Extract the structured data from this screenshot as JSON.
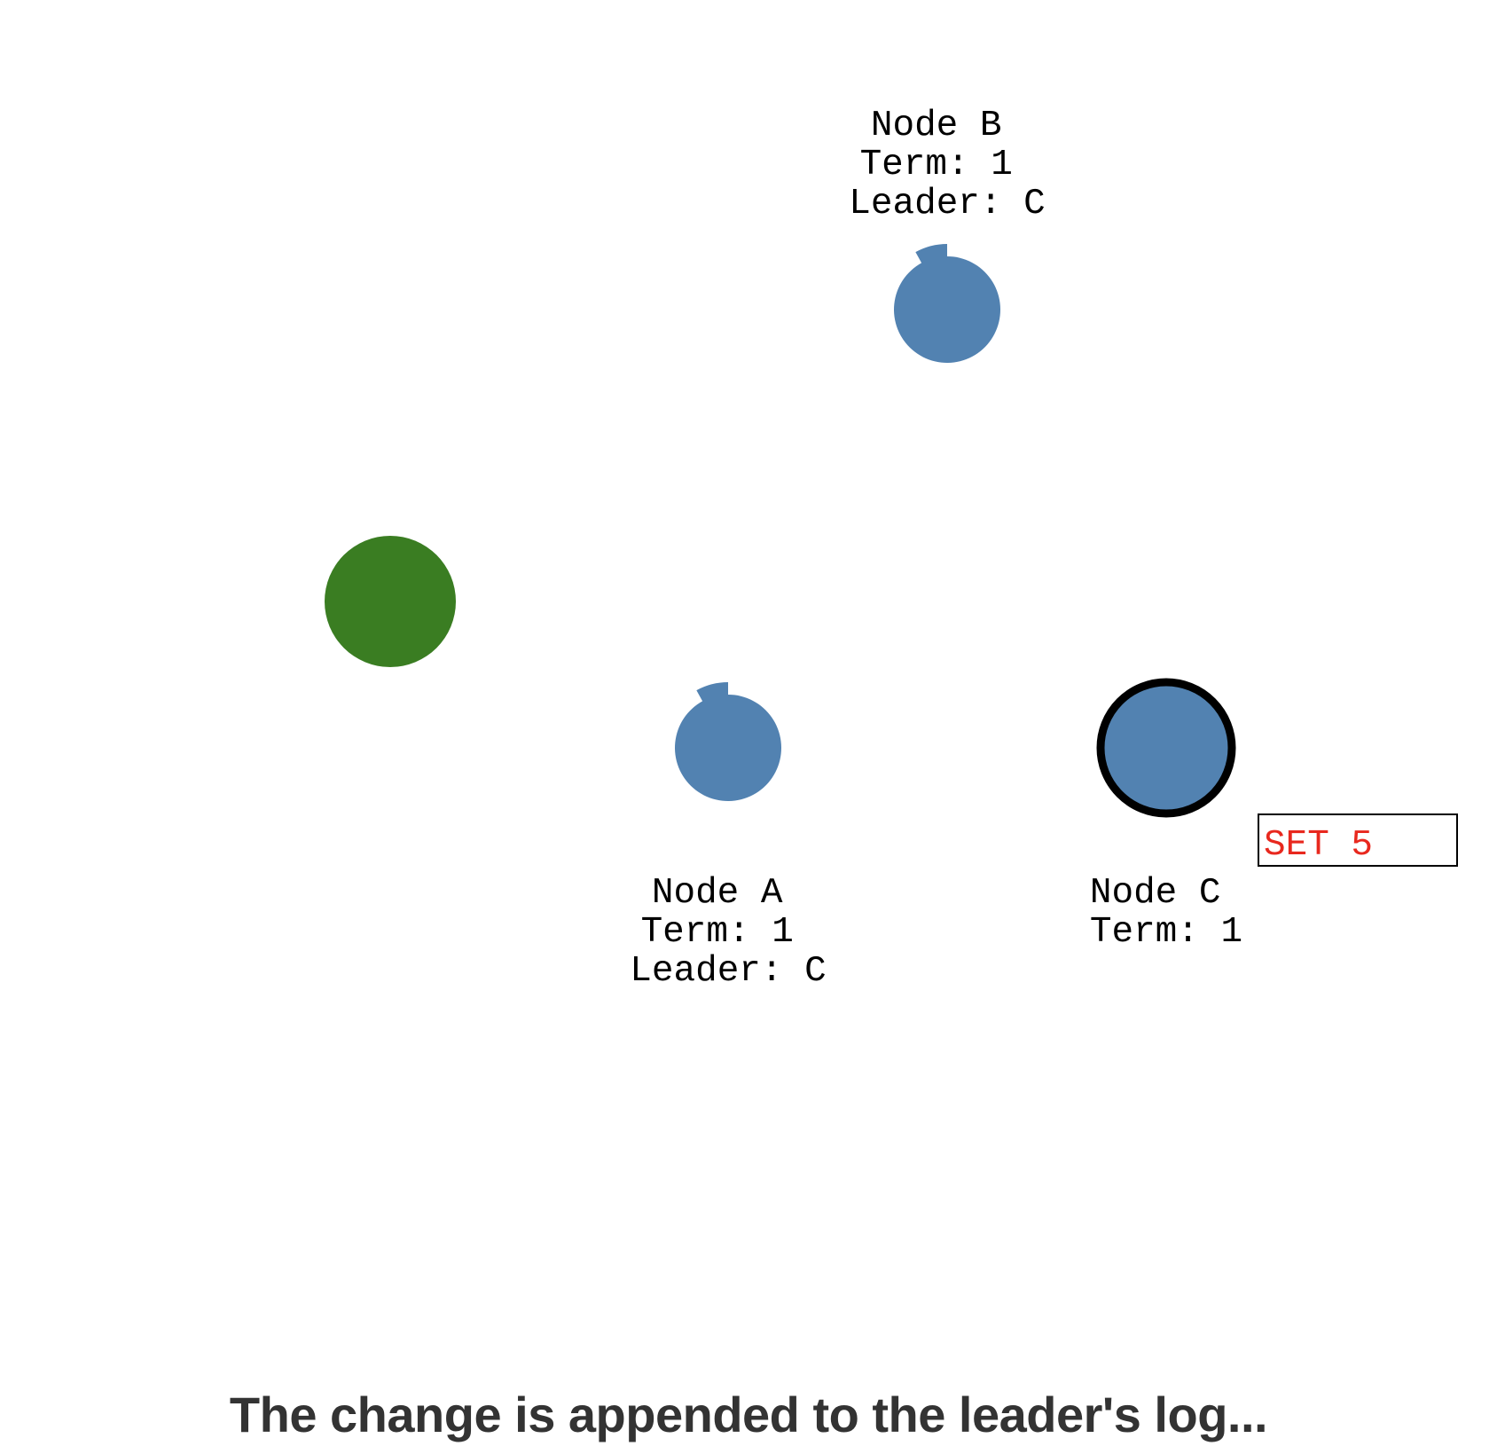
{
  "colors": {
    "background": "#ffffff",
    "node_fill": "#5282b1",
    "client_fill": "#3a7d22",
    "leader_stroke": "#000000",
    "log_text": "#e8281e",
    "label_text": "#000000",
    "caption_text": "#333333"
  },
  "client": {
    "color": "#3a7d22"
  },
  "nodes": [
    {
      "id": "B",
      "name": "Node B",
      "term": "Term: 1",
      "leader": "Leader: C",
      "role": "follower",
      "election_timer_progress": 0.92
    },
    {
      "id": "A",
      "name": "Node A",
      "term": "Term: 1",
      "leader": "Leader: C",
      "role": "follower",
      "election_timer_progress": 0.92
    },
    {
      "id": "C",
      "name": "Node C",
      "term": "Term: 1",
      "leader": "",
      "role": "leader",
      "log": [
        "SET 5"
      ]
    }
  ],
  "caption": "The change is appended to the leader's log..."
}
